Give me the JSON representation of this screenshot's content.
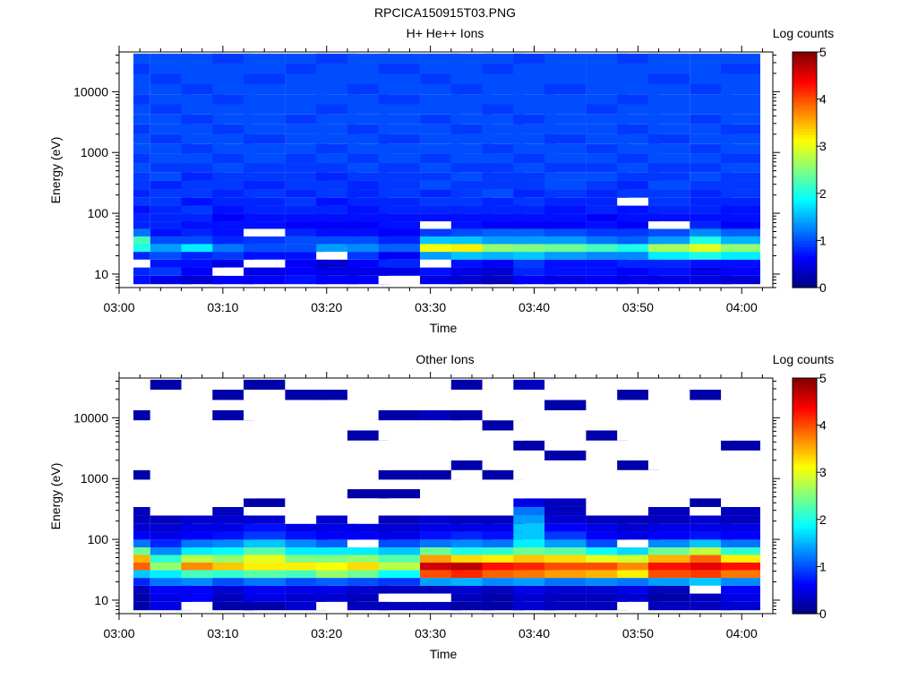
{
  "figure_title": "RPCICA150915T03.PNG",
  "colorscale": {
    "stops": [
      "#000080",
      "#0000ff",
      "#0080ff",
      "#00ffff",
      "#80ff80",
      "#ffff00",
      "#ff8000",
      "#ff0000",
      "#800000"
    ],
    "missing_color": "#ffffff"
  },
  "chart_data": [
    {
      "type": "heatmap",
      "title": "H+ He++ Ions",
      "xlabel": "Time",
      "ylabel": "Energy (eV)",
      "x_ticks": [
        "03:00",
        "03:10",
        "03:20",
        "03:30",
        "03:40",
        "03:50",
        "04:00"
      ],
      "xlim": [
        "03:00",
        "04:03"
      ],
      "y_ticks": [
        "10",
        "100",
        "1000",
        "10000"
      ],
      "ylim": [
        6,
        45000
      ],
      "yscale": "log",
      "colorbar": {
        "label": "Log counts",
        "ticks": [
          "0",
          "1",
          "2",
          "3",
          "4",
          "5"
        ],
        "range": [
          0,
          5
        ]
      },
      "time_bins": [
        "03:01",
        "03:05",
        "03:08",
        "03:11",
        "03:14",
        "03:18",
        "03:21",
        "03:24",
        "03:27",
        "03:31",
        "03:34",
        "03:37",
        "03:40",
        "03:43",
        "03:47",
        "03:50",
        "03:53",
        "03:57",
        "04:00"
      ],
      "energy_bins": [
        8,
        11,
        15,
        20,
        27,
        36,
        48,
        64,
        85,
        115,
        155,
        210,
        290,
        400,
        560,
        800,
        1150,
        1650,
        2400,
        3500,
        5100,
        7500,
        11000,
        16000,
        24000,
        35000
      ],
      "values": [
        [
          0.7,
          0.5,
          0.4,
          0.6,
          0.6,
          0.7,
          0.6,
          0.6,
          null,
          0.5,
          0.4,
          0.3,
          0.6,
          0.5,
          0.6,
          0.5,
          0.5,
          0.5,
          0.4
        ],
        [
          0.8,
          0.9,
          0.6,
          null,
          0.5,
          0.6,
          0.5,
          0.5,
          0.5,
          0.7,
          0.5,
          0.4,
          0.8,
          0.7,
          0.7,
          0.6,
          0.7,
          0.5,
          0.6
        ],
        [
          null,
          0.7,
          0.7,
          0.5,
          null,
          0.6,
          0.4,
          0.6,
          0.8,
          null,
          0.7,
          0.6,
          0.9,
          0.7,
          0.7,
          0.8,
          0.8,
          0.7,
          0.7
        ],
        [
          0.8,
          1.0,
          0.8,
          0.9,
          0.7,
          0.7,
          null,
          0.9,
          0.6,
          1.4,
          1.6,
          1.5,
          1.6,
          1.4,
          1.3,
          1.3,
          1.8,
          2.0,
          1.8
        ],
        [
          2.0,
          1.4,
          1.8,
          1.2,
          1.0,
          1.0,
          1.4,
          1.3,
          1.1,
          3.1,
          3.2,
          2.6,
          2.5,
          2.4,
          2.2,
          2.0,
          2.7,
          3.0,
          2.6
        ],
        [
          2.2,
          1.0,
          1.0,
          0.8,
          0.9,
          1.0,
          1.0,
          1.0,
          0.8,
          1.6,
          1.6,
          1.4,
          1.4,
          1.4,
          1.2,
          1.1,
          1.4,
          2.0,
          1.5
        ],
        [
          1.2,
          0.7,
          0.8,
          0.7,
          null,
          0.8,
          0.7,
          0.7,
          0.6,
          0.9,
          1.0,
          1.1,
          1.1,
          1.0,
          0.9,
          0.9,
          1.0,
          1.3,
          1.1
        ],
        [
          0.8,
          0.8,
          0.7,
          0.7,
          0.7,
          0.6,
          0.6,
          0.6,
          0.7,
          null,
          0.7,
          0.6,
          0.6,
          0.6,
          0.7,
          0.6,
          null,
          0.8,
          0.6
        ],
        [
          0.8,
          0.8,
          0.8,
          0.6,
          0.7,
          0.7,
          0.7,
          0.7,
          0.7,
          0.7,
          0.7,
          0.7,
          0.7,
          0.7,
          0.6,
          0.7,
          0.7,
          0.7,
          0.7
        ],
        [
          0.7,
          0.8,
          0.9,
          0.7,
          0.8,
          0.8,
          0.8,
          0.7,
          0.8,
          0.8,
          0.8,
          0.8,
          0.8,
          0.7,
          0.8,
          0.7,
          0.8,
          0.8,
          0.7
        ],
        [
          0.9,
          0.9,
          0.7,
          0.8,
          0.8,
          0.9,
          0.7,
          0.8,
          0.8,
          0.9,
          0.9,
          0.8,
          0.9,
          0.8,
          0.8,
          null,
          0.9,
          0.8,
          0.8
        ],
        [
          0.8,
          0.9,
          0.9,
          0.8,
          0.9,
          0.8,
          0.9,
          0.8,
          0.9,
          0.8,
          0.9,
          1.0,
          0.8,
          0.9,
          0.8,
          0.9,
          0.9,
          0.8,
          0.9
        ],
        [
          0.9,
          0.8,
          0.9,
          0.9,
          0.8,
          0.9,
          0.9,
          0.8,
          0.9,
          1.0,
          0.9,
          0.9,
          0.9,
          1.0,
          0.9,
          0.8,
          1.0,
          0.9,
          0.9
        ],
        [
          0.9,
          1.0,
          0.8,
          0.9,
          0.9,
          0.9,
          0.8,
          0.9,
          0.9,
          0.9,
          1.0,
          0.9,
          0.9,
          1.0,
          1.0,
          0.9,
          0.9,
          1.0,
          0.9
        ],
        [
          1.0,
          0.9,
          0.9,
          1.0,
          0.9,
          0.9,
          0.9,
          1.0,
          0.9,
          1.0,
          0.9,
          0.9,
          1.0,
          0.9,
          0.9,
          1.0,
          0.9,
          0.9,
          1.0
        ],
        [
          0.9,
          1.0,
          1.0,
          0.9,
          1.0,
          0.9,
          1.0,
          0.9,
          1.0,
          0.9,
          1.0,
          1.0,
          0.9,
          1.0,
          1.0,
          0.9,
          1.0,
          1.0,
          0.9
        ],
        [
          1.0,
          1.0,
          0.9,
          1.0,
          1.0,
          1.0,
          0.9,
          1.0,
          1.0,
          1.0,
          1.0,
          0.9,
          1.0,
          1.0,
          0.9,
          1.0,
          1.0,
          0.9,
          1.0
        ],
        [
          1.0,
          0.9,
          1.0,
          1.0,
          0.9,
          1.0,
          1.0,
          1.0,
          0.9,
          1.0,
          1.0,
          1.0,
          1.0,
          0.9,
          1.0,
          1.0,
          0.9,
          1.0,
          1.0
        ],
        [
          0.9,
          1.0,
          1.0,
          0.9,
          1.0,
          1.0,
          1.0,
          0.9,
          1.0,
          1.0,
          0.9,
          1.0,
          1.0,
          1.0,
          1.0,
          0.9,
          1.0,
          1.0,
          0.9
        ],
        [
          1.0,
          1.0,
          0.9,
          1.0,
          1.0,
          0.9,
          1.0,
          1.0,
          1.0,
          0.9,
          1.0,
          1.0,
          0.9,
          1.0,
          1.0,
          1.0,
          1.0,
          0.9,
          1.0
        ],
        [
          1.0,
          0.9,
          1.0,
          1.0,
          1.0,
          1.0,
          0.9,
          1.0,
          1.0,
          1.0,
          1.0,
          0.9,
          1.0,
          1.0,
          0.9,
          1.0,
          1.0,
          1.0,
          1.0
        ],
        [
          0.9,
          1.0,
          1.0,
          0.9,
          1.0,
          1.0,
          1.0,
          1.0,
          0.9,
          1.0,
          1.0,
          1.0,
          1.0,
          1.0,
          1.0,
          0.9,
          1.0,
          1.0,
          1.0
        ],
        [
          1.0,
          1.0,
          0.9,
          1.0,
          1.0,
          1.0,
          1.0,
          0.9,
          1.0,
          1.0,
          0.9,
          1.0,
          1.0,
          0.9,
          1.0,
          1.0,
          1.0,
          0.9,
          1.0
        ],
        [
          1.0,
          0.9,
          1.0,
          1.0,
          0.9,
          1.0,
          1.0,
          1.0,
          1.0,
          0.9,
          1.0,
          1.0,
          1.0,
          1.0,
          1.0,
          1.0,
          0.9,
          1.0,
          1.0
        ],
        [
          0.9,
          1.0,
          1.0,
          1.0,
          1.0,
          0.9,
          1.0,
          1.0,
          0.9,
          1.0,
          1.0,
          0.9,
          1.0,
          1.0,
          1.0,
          1.0,
          1.0,
          1.0,
          0.9
        ],
        [
          1.0,
          1.0,
          1.0,
          0.9,
          1.0,
          1.0,
          0.9,
          1.0,
          1.0,
          1.0,
          1.0,
          1.0,
          0.9,
          1.0,
          1.0,
          0.9,
          1.0,
          1.0,
          1.0
        ]
      ]
    },
    {
      "type": "heatmap",
      "title": "Other Ions",
      "xlabel": "Time",
      "ylabel": "Energy (eV)",
      "x_ticks": [
        "03:00",
        "03:10",
        "03:20",
        "03:30",
        "03:40",
        "03:50",
        "04:00"
      ],
      "xlim": [
        "03:00",
        "04:03"
      ],
      "y_ticks": [
        "10",
        "100",
        "1000",
        "10000"
      ],
      "ylim": [
        6,
        45000
      ],
      "yscale": "log",
      "colorbar": {
        "label": "Log counts",
        "ticks": [
          "0",
          "1",
          "2",
          "3",
          "4",
          "5"
        ],
        "range": [
          0,
          5
        ]
      },
      "time_bins": [
        "03:01",
        "03:05",
        "03:08",
        "03:11",
        "03:14",
        "03:18",
        "03:21",
        "03:24",
        "03:27",
        "03:31",
        "03:34",
        "03:37",
        "03:40",
        "03:43",
        "03:47",
        "03:50",
        "03:53",
        "03:57",
        "04:00"
      ],
      "energy_bins": [
        8,
        11,
        15,
        20,
        27,
        36,
        48,
        64,
        85,
        115,
        155,
        210,
        290,
        400,
        560,
        800,
        1150,
        1650,
        2400,
        3500,
        5100,
        7500,
        11000,
        16000,
        24000,
        35000
      ],
      "values": [
        [
          0.2,
          0.5,
          null,
          0.2,
          0.2,
          0.4,
          null,
          0.3,
          0.3,
          0.3,
          0.2,
          0.2,
          0.4,
          0.3,
          0.3,
          null,
          0.3,
          0.3,
          0.4
        ],
        [
          0.2,
          0.5,
          0.6,
          0.3,
          0.5,
          0.4,
          0.4,
          0.3,
          null,
          null,
          0.3,
          0.2,
          0.4,
          0.3,
          0.3,
          0.4,
          0.2,
          0.3,
          0.5
        ],
        [
          0.3,
          0.6,
          0.6,
          0.4,
          0.6,
          0.5,
          0.5,
          0.4,
          0.3,
          0.3,
          0.4,
          0.3,
          0.5,
          0.4,
          0.4,
          0.5,
          0.3,
          null,
          0.6
        ],
        [
          0.8,
          1.2,
          1.3,
          1.0,
          1.2,
          1.0,
          1.1,
          1.0,
          0.9,
          1.4,
          1.5,
          1.3,
          1.4,
          1.2,
          1.3,
          1.2,
          1.4,
          1.6,
          1.3
        ],
        [
          1.6,
          1.8,
          2.2,
          2.1,
          2.3,
          2.2,
          2.6,
          2.4,
          1.9,
          4.0,
          4.2,
          3.9,
          3.8,
          3.6,
          3.5,
          3.2,
          4.0,
          4.1,
          3.8
        ],
        [
          3.9,
          2.6,
          3.7,
          3.4,
          3.2,
          3.2,
          3.1,
          3.3,
          2.8,
          4.6,
          4.7,
          4.3,
          4.2,
          4.0,
          4.0,
          3.7,
          4.3,
          4.5,
          4.3
        ],
        [
          3.5,
          2.1,
          2.8,
          2.6,
          3.0,
          2.5,
          2.5,
          2.6,
          2.3,
          3.6,
          3.3,
          3.2,
          3.4,
          3.3,
          3.0,
          2.9,
          3.5,
          3.9,
          3.2
        ],
        [
          2.4,
          1.3,
          1.8,
          1.9,
          2.3,
          1.8,
          1.8,
          1.8,
          1.6,
          2.4,
          2.0,
          2.1,
          2.4,
          2.3,
          1.9,
          1.7,
          2.4,
          2.8,
          2.1
        ],
        [
          1.2,
          0.8,
          1.2,
          1.3,
          1.6,
          1.3,
          1.1,
          null,
          1.0,
          1.2,
          1.3,
          1.2,
          1.8,
          1.4,
          1.0,
          null,
          1.3,
          1.6,
          1.2
        ],
        [
          0.6,
          0.5,
          0.6,
          0.7,
          0.9,
          0.7,
          0.6,
          0.6,
          0.5,
          0.7,
          0.8,
          0.7,
          1.6,
          0.9,
          0.6,
          0.5,
          0.6,
          0.7,
          0.6
        ],
        [
          0.4,
          0.4,
          0.5,
          0.5,
          0.7,
          0.5,
          0.5,
          0.5,
          0.4,
          0.5,
          0.5,
          0.5,
          1.6,
          0.6,
          0.5,
          0.4,
          0.5,
          0.5,
          0.5
        ],
        [
          0.3,
          0.3,
          0.4,
          0.4,
          0.4,
          null,
          0.4,
          null,
          0.3,
          0.4,
          0.3,
          0.3,
          1.4,
          0.4,
          0.3,
          0.3,
          0.3,
          0.4,
          0.3
        ],
        [
          0.3,
          null,
          null,
          0.3,
          null,
          null,
          null,
          null,
          null,
          null,
          null,
          null,
          1.2,
          0.3,
          null,
          null,
          0.3,
          null,
          0.3
        ],
        [
          null,
          null,
          null,
          null,
          0.2,
          null,
          null,
          null,
          null,
          null,
          null,
          null,
          0.5,
          0.3,
          null,
          null,
          null,
          0.2,
          null
        ],
        [
          null,
          null,
          null,
          null,
          null,
          null,
          null,
          0.2,
          0.2,
          null,
          null,
          null,
          null,
          null,
          null,
          null,
          null,
          null,
          null
        ],
        [
          null,
          null,
          null,
          null,
          null,
          null,
          null,
          null,
          null,
          null,
          null,
          null,
          null,
          null,
          null,
          null,
          null,
          null,
          null
        ],
        [
          0.2,
          null,
          null,
          null,
          null,
          null,
          null,
          null,
          0.2,
          0.2,
          null,
          0.2,
          null,
          null,
          null,
          null,
          null,
          null,
          null
        ],
        [
          null,
          null,
          null,
          null,
          null,
          null,
          null,
          null,
          null,
          null,
          0.2,
          null,
          null,
          null,
          null,
          0.2,
          null,
          null,
          null
        ],
        [
          null,
          null,
          null,
          null,
          null,
          null,
          null,
          null,
          null,
          null,
          null,
          null,
          null,
          0.2,
          null,
          null,
          null,
          null,
          null
        ],
        [
          null,
          null,
          null,
          null,
          null,
          null,
          null,
          null,
          null,
          null,
          null,
          null,
          0.2,
          null,
          null,
          null,
          null,
          null,
          0.2
        ],
        [
          null,
          null,
          null,
          null,
          null,
          null,
          null,
          0.2,
          null,
          null,
          null,
          null,
          null,
          null,
          0.2,
          null,
          null,
          null,
          null
        ],
        [
          null,
          null,
          null,
          null,
          null,
          null,
          null,
          null,
          null,
          null,
          null,
          0.2,
          null,
          null,
          null,
          null,
          null,
          null,
          null
        ],
        [
          0.2,
          null,
          null,
          0.2,
          null,
          null,
          null,
          null,
          0.2,
          0.3,
          0.2,
          null,
          null,
          null,
          null,
          null,
          null,
          null,
          null
        ],
        [
          null,
          null,
          null,
          null,
          null,
          null,
          null,
          null,
          null,
          null,
          null,
          null,
          null,
          0.2,
          null,
          null,
          null,
          null,
          null
        ],
        [
          null,
          null,
          null,
          0.2,
          null,
          0.2,
          0.2,
          null,
          null,
          null,
          null,
          null,
          null,
          null,
          null,
          0.2,
          null,
          0.2,
          null
        ],
        [
          null,
          0.2,
          null,
          null,
          0.2,
          null,
          null,
          null,
          null,
          null,
          0.2,
          null,
          0.3,
          null,
          null,
          null,
          null,
          null,
          null
        ]
      ]
    }
  ]
}
